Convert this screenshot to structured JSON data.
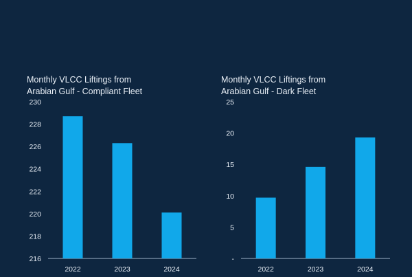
{
  "colors": {
    "background": "#0e2640",
    "bar": "#11a8ea",
    "axis": "#9fb3c8",
    "text": "#e8eef5"
  },
  "chart_data": [
    {
      "type": "bar",
      "title_lines": [
        "Monthly VLCC Liftings from",
        "Arabian Gulf - Compliant Fleet"
      ],
      "categories": [
        "2022",
        "2023",
        "2024"
      ],
      "values": [
        228.7,
        226.3,
        220.1
      ],
      "ylim": [
        216,
        230
      ],
      "yticks": [
        216,
        218,
        220,
        222,
        224,
        226,
        228,
        230
      ],
      "ytick_labels": [
        "216",
        "218",
        "220",
        "222",
        "224",
        "226",
        "228",
        "230"
      ],
      "xlabel": "",
      "ylabel": "",
      "grid": false
    },
    {
      "type": "bar",
      "title_lines": [
        "Monthly VLCC Liftings from",
        "Arabian Gulf - Dark Fleet"
      ],
      "categories": [
        "2022",
        "2023",
        "2024"
      ],
      "values": [
        9.7,
        14.6,
        19.3
      ],
      "ylim": [
        0,
        25
      ],
      "yticks": [
        0,
        5,
        10,
        15,
        20,
        25
      ],
      "ytick_labels": [
        "-",
        "5",
        "10",
        "15",
        "20",
        "25"
      ],
      "xlabel": "",
      "ylabel": "",
      "grid": false
    }
  ]
}
